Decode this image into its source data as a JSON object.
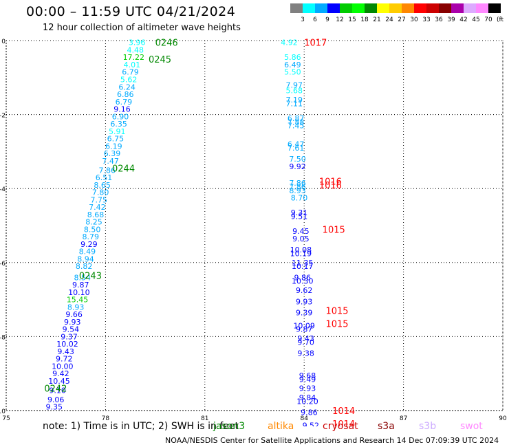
{
  "header": {
    "title": "00:00 – 11:59 UTC 04/21/2024",
    "subtitle": "12 hour collection of altimeter wave heights"
  },
  "colorbar": {
    "colors": [
      "#808080",
      "#00ffff",
      "#00aaff",
      "#0000ff",
      "#00cc00",
      "#00ff00",
      "#008800",
      "#ffff00",
      "#ffcc00",
      "#ff8800",
      "#ff0000",
      "#cc0000",
      "#880000",
      "#aa00aa",
      "#ddaaff",
      "#ff88ff",
      "#000000"
    ],
    "labels": [
      "3",
      "6",
      "9",
      "12",
      "15",
      "18",
      "21",
      "24",
      "27",
      "30",
      "33",
      "36",
      "39",
      "42",
      "45",
      "70"
    ],
    "unit": "(ft)"
  },
  "note": "note:  1) Time is in UTC; 2) SWH is in feet",
  "legend": [
    {
      "label": "jason3",
      "color": "#008800"
    },
    {
      "label": "altika",
      "color": "#ff8800"
    },
    {
      "label": "cryosat",
      "color": "#cc0000"
    },
    {
      "label": "s3a",
      "color": "#880000"
    },
    {
      "label": "s3b",
      "color": "#ccaaff"
    },
    {
      "label": "swot",
      "color": "#ff88ff"
    }
  ],
  "footer": "NOAA/NESDIS Center for Satellite Applications and Research    14 Dec 07:09:39 UTC 2024",
  "chart_data": {
    "type": "scatter",
    "title": "00:00 – 11:59 UTC 04/21/2024",
    "subtitle": "12 hour collection of altimeter wave heights",
    "xlim": [
      75,
      90
    ],
    "ylim": [
      -10,
      0
    ],
    "xticks": [
      75,
      78,
      81,
      84,
      87,
      90
    ],
    "yticks": [
      0,
      -2,
      -4,
      -6,
      -8,
      -10
    ],
    "grid": true,
    "swh_points": [
      {
        "x": 78.95,
        "y": -0.05,
        "label": "3.96",
        "color": "#00ffff"
      },
      {
        "x": 78.9,
        "y": -0.25,
        "label": "4.48",
        "color": "#00ffff"
      },
      {
        "x": 78.85,
        "y": -0.45,
        "label": "17.22",
        "color": "#00cc00"
      },
      {
        "x": 78.8,
        "y": -0.65,
        "label": "4.01",
        "color": "#00ffff"
      },
      {
        "x": 78.75,
        "y": -0.85,
        "label": "6.79",
        "color": "#00aaff"
      },
      {
        "x": 78.7,
        "y": -1.05,
        "label": "5.62",
        "color": "#00ffff"
      },
      {
        "x": 78.65,
        "y": -1.25,
        "label": "6.24",
        "color": "#00aaff"
      },
      {
        "x": 78.6,
        "y": -1.45,
        "label": "6.86",
        "color": "#00aaff"
      },
      {
        "x": 78.55,
        "y": -1.65,
        "label": "6.79",
        "color": "#00aaff"
      },
      {
        "x": 78.5,
        "y": -1.85,
        "label": "9.16",
        "color": "#0000ff"
      },
      {
        "x": 78.45,
        "y": -2.05,
        "label": "6.90",
        "color": "#00aaff"
      },
      {
        "x": 78.4,
        "y": -2.25,
        "label": "6.35",
        "color": "#00aaff"
      },
      {
        "x": 78.35,
        "y": -2.45,
        "label": "5.91",
        "color": "#00ffff"
      },
      {
        "x": 78.3,
        "y": -2.65,
        "label": "6.75",
        "color": "#00aaff"
      },
      {
        "x": 78.25,
        "y": -2.85,
        "label": "6.19",
        "color": "#00aaff"
      },
      {
        "x": 78.2,
        "y": -3.05,
        "label": "6.39",
        "color": "#00aaff"
      },
      {
        "x": 78.15,
        "y": -3.25,
        "label": "7.47",
        "color": "#00aaff"
      },
      {
        "x": 78.05,
        "y": -3.5,
        "label": "7.86",
        "color": "#00aaff"
      },
      {
        "x": 77.95,
        "y": -3.7,
        "label": "6.51",
        "color": "#00aaff"
      },
      {
        "x": 77.9,
        "y": -3.9,
        "label": "8.65",
        "color": "#00aaff"
      },
      {
        "x": 77.85,
        "y": -4.1,
        "label": "7.80",
        "color": "#00aaff"
      },
      {
        "x": 77.8,
        "y": -4.3,
        "label": "7.75",
        "color": "#00aaff"
      },
      {
        "x": 77.75,
        "y": -4.5,
        "label": "7.42",
        "color": "#00aaff"
      },
      {
        "x": 77.7,
        "y": -4.7,
        "label": "8.68",
        "color": "#00aaff"
      },
      {
        "x": 77.65,
        "y": -4.9,
        "label": "8.25",
        "color": "#00aaff"
      },
      {
        "x": 77.6,
        "y": -5.1,
        "label": "8.50",
        "color": "#00aaff"
      },
      {
        "x": 77.55,
        "y": -5.3,
        "label": "8.79",
        "color": "#00aaff"
      },
      {
        "x": 77.5,
        "y": -5.5,
        "label": "9.29",
        "color": "#0000ff"
      },
      {
        "x": 77.45,
        "y": -5.7,
        "label": "8.49",
        "color": "#00aaff"
      },
      {
        "x": 77.4,
        "y": -5.9,
        "label": "8.94",
        "color": "#00aaff"
      },
      {
        "x": 77.35,
        "y": -6.1,
        "label": "8.82",
        "color": "#00aaff"
      },
      {
        "x": 77.3,
        "y": -6.4,
        "label": "8.54",
        "color": "#00aaff"
      },
      {
        "x": 77.25,
        "y": -6.6,
        "label": "9.87",
        "color": "#0000ff"
      },
      {
        "x": 77.2,
        "y": -6.8,
        "label": "10.10",
        "color": "#0000ff"
      },
      {
        "x": 77.15,
        "y": -7.0,
        "label": "15.45",
        "color": "#00cc00"
      },
      {
        "x": 77.1,
        "y": -7.2,
        "label": "8.93",
        "color": "#00aaff"
      },
      {
        "x": 77.05,
        "y": -7.4,
        "label": "9.66",
        "color": "#0000ff"
      },
      {
        "x": 77.0,
        "y": -7.6,
        "label": "9.93",
        "color": "#0000ff"
      },
      {
        "x": 76.95,
        "y": -7.8,
        "label": "9.54",
        "color": "#0000ff"
      },
      {
        "x": 76.9,
        "y": -8.0,
        "label": "9.37",
        "color": "#0000ff"
      },
      {
        "x": 76.85,
        "y": -8.2,
        "label": "10.02",
        "color": "#0000ff"
      },
      {
        "x": 76.8,
        "y": -8.4,
        "label": "9.43",
        "color": "#0000ff"
      },
      {
        "x": 76.75,
        "y": -8.6,
        "label": "9.72",
        "color": "#0000ff"
      },
      {
        "x": 76.7,
        "y": -8.8,
        "label": "10.00",
        "color": "#0000ff"
      },
      {
        "x": 76.65,
        "y": -9.0,
        "label": "9.42",
        "color": "#0000ff"
      },
      {
        "x": 76.6,
        "y": -9.2,
        "label": "10.45",
        "color": "#0000ff"
      },
      {
        "x": 76.55,
        "y": -9.45,
        "label": "9.10",
        "color": "#0000ff"
      },
      {
        "x": 76.5,
        "y": -9.7,
        "label": "9.06",
        "color": "#0000ff"
      },
      {
        "x": 76.45,
        "y": -9.9,
        "label": "9.35",
        "color": "#0000ff"
      },
      {
        "x": 83.55,
        "y": -0.05,
        "label": "4.92",
        "color": "#00ffff"
      },
      {
        "x": 83.65,
        "y": -0.45,
        "label": "5.86",
        "color": "#00ffff"
      },
      {
        "x": 83.65,
        "y": -0.65,
        "label": "6.49",
        "color": "#00aaff"
      },
      {
        "x": 83.65,
        "y": -0.85,
        "label": "5.50",
        "color": "#00ffff"
      },
      {
        "x": 83.7,
        "y": -1.2,
        "label": "7.97",
        "color": "#00aaff"
      },
      {
        "x": 83.7,
        "y": -1.35,
        "label": "5.68",
        "color": "#00ffff"
      },
      {
        "x": 83.7,
        "y": -1.6,
        "label": "7.19",
        "color": "#00aaff"
      },
      {
        "x": 83.7,
        "y": -1.7,
        "label": "7.11",
        "color": "#00aaff"
      },
      {
        "x": 83.75,
        "y": -2.1,
        "label": "6.87",
        "color": "#00aaff"
      },
      {
        "x": 83.75,
        "y": -2.2,
        "label": "7.88",
        "color": "#00aaff"
      },
      {
        "x": 83.75,
        "y": -2.3,
        "label": "7.45",
        "color": "#00aaff"
      },
      {
        "x": 83.75,
        "y": -2.8,
        "label": "6.47",
        "color": "#00aaff"
      },
      {
        "x": 83.75,
        "y": -2.9,
        "label": "7.61",
        "color": "#00aaff"
      },
      {
        "x": 83.8,
        "y": -3.2,
        "label": "7.50",
        "color": "#00aaff"
      },
      {
        "x": 83.8,
        "y": -3.4,
        "label": "9.92",
        "color": "#0000ff"
      },
      {
        "x": 83.8,
        "y": -3.85,
        "label": "7.86",
        "color": "#00aaff"
      },
      {
        "x": 83.8,
        "y": -3.95,
        "label": "7.86",
        "color": "#00aaff"
      },
      {
        "x": 83.8,
        "y": -4.05,
        "label": "8.93",
        "color": "#00aaff"
      },
      {
        "x": 83.85,
        "y": -4.25,
        "label": "8.70",
        "color": "#00aaff"
      },
      {
        "x": 83.85,
        "y": -4.65,
        "label": "9.31",
        "color": "#0000ff"
      },
      {
        "x": 83.85,
        "y": -4.75,
        "label": "9.51",
        "color": "#0000ff"
      },
      {
        "x": 83.9,
        "y": -5.15,
        "label": "9.45",
        "color": "#0000ff"
      },
      {
        "x": 83.9,
        "y": -5.35,
        "label": "9.05",
        "color": "#0000ff"
      },
      {
        "x": 83.9,
        "y": -5.65,
        "label": "10.08",
        "color": "#0000ff"
      },
      {
        "x": 83.9,
        "y": -5.75,
        "label": "10.19",
        "color": "#0000ff"
      },
      {
        "x": 83.95,
        "y": -6.0,
        "label": "11.35",
        "color": "#0000ff"
      },
      {
        "x": 83.95,
        "y": -6.1,
        "label": "10.17",
        "color": "#0000ff"
      },
      {
        "x": 83.95,
        "y": -6.4,
        "label": "9.86",
        "color": "#0000ff"
      },
      {
        "x": 83.95,
        "y": -6.5,
        "label": "10.30",
        "color": "#0000ff"
      },
      {
        "x": 84.0,
        "y": -6.75,
        "label": "9.62",
        "color": "#0000ff"
      },
      {
        "x": 84.0,
        "y": -7.05,
        "label": "9.93",
        "color": "#0000ff"
      },
      {
        "x": 84.0,
        "y": -7.35,
        "label": "9.39",
        "color": "#0000ff"
      },
      {
        "x": 84.0,
        "y": -7.7,
        "label": "10.09",
        "color": "#0000ff"
      },
      {
        "x": 84.0,
        "y": -7.8,
        "label": "9.87",
        "color": "#0000ff"
      },
      {
        "x": 84.05,
        "y": -8.05,
        "label": "9.43",
        "color": "#0000ff"
      },
      {
        "x": 84.05,
        "y": -8.15,
        "label": "9.70",
        "color": "#0000ff"
      },
      {
        "x": 84.05,
        "y": -8.45,
        "label": "9.38",
        "color": "#0000ff"
      },
      {
        "x": 84.1,
        "y": -9.05,
        "label": "9.68",
        "color": "#0000ff"
      },
      {
        "x": 84.1,
        "y": -9.15,
        "label": "9.49",
        "color": "#0000ff"
      },
      {
        "x": 84.1,
        "y": -9.4,
        "label": "9.93",
        "color": "#0000ff"
      },
      {
        "x": 84.1,
        "y": -9.65,
        "label": "9.84",
        "color": "#0000ff"
      },
      {
        "x": 84.1,
        "y": -9.75,
        "label": "10.20",
        "color": "#0000ff"
      },
      {
        "x": 84.15,
        "y": -10.05,
        "label": "9.86",
        "color": "#0000ff"
      },
      {
        "x": 84.2,
        "y": -10.4,
        "label": "9.52",
        "color": "#0000ff"
      }
    ],
    "time_labels": [
      {
        "x": 79.5,
        "y": -0.05,
        "label": "0246",
        "color": "#008800"
      },
      {
        "x": 79.3,
        "y": -0.5,
        "label": "0245",
        "color": "#008800"
      },
      {
        "x": 78.2,
        "y": -3.45,
        "label": "0244",
        "color": "#008800"
      },
      {
        "x": 77.2,
        "y": -6.35,
        "label": "0243",
        "color": "#008800"
      },
      {
        "x": 76.15,
        "y": -9.4,
        "label": "0242",
        "color": "#008800"
      },
      {
        "x": 84.0,
        "y": -0.05,
        "label": "1017",
        "color": "#ff0000"
      },
      {
        "x": 84.45,
        "y": -3.8,
        "label": "1016",
        "color": "#ff0000"
      },
      {
        "x": 84.45,
        "y": -3.9,
        "label": "1016",
        "color": "#ff0000"
      },
      {
        "x": 84.55,
        "y": -5.1,
        "label": "1015",
        "color": "#ff0000"
      },
      {
        "x": 84.65,
        "y": -7.3,
        "label": "1015",
        "color": "#ff0000"
      },
      {
        "x": 84.65,
        "y": -7.65,
        "label": "1015",
        "color": "#ff0000"
      },
      {
        "x": 84.85,
        "y": -10.0,
        "label": "1014",
        "color": "#ff0000"
      },
      {
        "x": 84.85,
        "y": -10.35,
        "label": "1014",
        "color": "#ff0000"
      }
    ]
  }
}
